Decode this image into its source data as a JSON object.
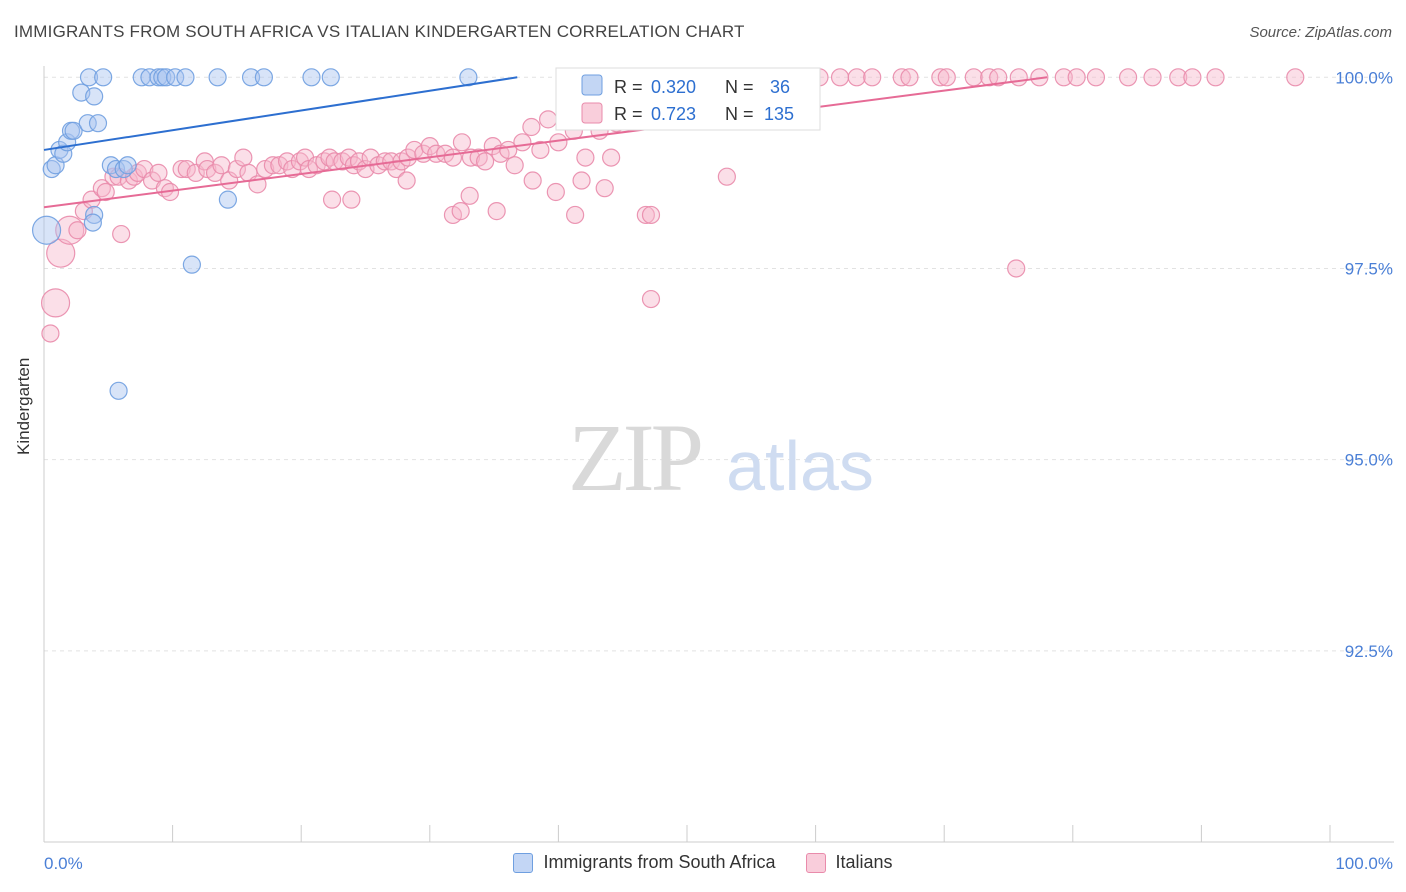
{
  "title": "IMMIGRANTS FROM SOUTH AFRICA VS ITALIAN KINDERGARTEN CORRELATION CHART",
  "source": "Source: ZipAtlas.com",
  "watermark": {
    "zip": "ZIP",
    "atlas": "atlas"
  },
  "colors": {
    "blue_fill": "#a9c4f0",
    "blue_stroke": "#6f9fe0",
    "blue_line": "#2d6fd0",
    "pink_fill": "#f6b9cc",
    "pink_stroke": "#e98bab",
    "pink_line": "#e66b96",
    "tick_label": "#4a7fd6"
  },
  "legend_top": [
    {
      "r_label": "R =",
      "r_value": "0.320",
      "n_label": "N =",
      "n_value": "36"
    },
    {
      "r_label": "R =",
      "r_value": "0.723",
      "n_label": "N =",
      "n_value": "135"
    }
  ],
  "legend_bottom": [
    "Immigrants from South Africa",
    "Italians"
  ],
  "chart_data": {
    "type": "scatter",
    "title": "IMMIGRANTS FROM SOUTH AFRICA VS ITALIAN KINDERGARTEN CORRELATION CHART",
    "xlabel": "",
    "ylabel": "Kindergarten",
    "xlim": [
      0,
      100
    ],
    "ylim": [
      90.0,
      100.2
    ],
    "x_tick_labels": [
      "0.0%",
      "100.0%"
    ],
    "y_ticks": [
      92.5,
      95.0,
      97.5,
      100.0
    ],
    "y_tick_labels": [
      "92.5%",
      "95.0%",
      "97.5%",
      "100.0%"
    ],
    "series": [
      {
        "name": "Immigrants from South Africa",
        "R": 0.32,
        "N": 36,
        "trend": {
          "x": [
            0,
            36.8
          ],
          "y": [
            99.05,
            100.0
          ]
        },
        "points": [
          [
            0.2,
            98.0,
            1
          ],
          [
            0.6,
            98.8,
            0
          ],
          [
            0.9,
            98.85,
            0
          ],
          [
            1.2,
            99.05,
            0
          ],
          [
            1.5,
            99.0,
            0
          ],
          [
            1.8,
            99.15,
            0
          ],
          [
            2.1,
            99.3,
            0
          ],
          [
            2.3,
            99.3,
            0
          ],
          [
            2.9,
            99.8,
            0
          ],
          [
            3.4,
            99.4,
            0
          ],
          [
            3.5,
            100.0,
            0
          ],
          [
            3.9,
            99.75,
            0
          ],
          [
            4.2,
            99.4,
            0
          ],
          [
            3.9,
            98.2,
            0
          ],
          [
            3.8,
            98.1,
            0
          ],
          [
            4.6,
            100.0,
            0
          ],
          [
            5.2,
            98.85,
            0
          ],
          [
            5.6,
            98.8,
            0
          ],
          [
            6.2,
            98.8,
            0
          ],
          [
            6.5,
            98.85,
            0
          ],
          [
            7.6,
            100.0,
            0
          ],
          [
            8.2,
            100.0,
            0
          ],
          [
            8.9,
            100.0,
            0
          ],
          [
            9.2,
            100.0,
            0
          ],
          [
            9.5,
            100.0,
            0
          ],
          [
            10.2,
            100.0,
            0
          ],
          [
            11.0,
            100.0,
            0
          ],
          [
            13.5,
            100.0,
            0
          ],
          [
            14.3,
            98.4,
            0
          ],
          [
            16.1,
            100.0,
            0
          ],
          [
            17.1,
            100.0,
            0
          ],
          [
            20.8,
            100.0,
            0
          ],
          [
            22.3,
            100.0,
            0
          ],
          [
            33.0,
            100.0,
            0
          ],
          [
            11.5,
            97.55,
            0
          ],
          [
            5.8,
            95.9,
            0
          ]
        ]
      },
      {
        "name": "Italians",
        "R": 0.723,
        "N": 135,
        "trend": {
          "x": [
            0,
            78.0
          ],
          "y": [
            98.3,
            100.0
          ]
        },
        "points": [
          [
            0.5,
            96.65,
            0
          ],
          [
            0.9,
            97.05,
            1
          ],
          [
            1.3,
            97.7,
            1
          ],
          [
            2.0,
            98.0,
            1
          ],
          [
            2.6,
            98.0,
            0
          ],
          [
            3.1,
            98.25,
            0
          ],
          [
            3.7,
            98.4,
            0
          ],
          [
            4.5,
            98.55,
            0
          ],
          [
            4.8,
            98.5,
            0
          ],
          [
            5.4,
            98.7,
            0
          ],
          [
            5.8,
            98.7,
            0
          ],
          [
            6.0,
            97.95,
            0
          ],
          [
            6.6,
            98.65,
            0
          ],
          [
            7.0,
            98.7,
            0
          ],
          [
            7.3,
            98.75,
            0
          ],
          [
            7.8,
            98.8,
            0
          ],
          [
            8.4,
            98.65,
            0
          ],
          [
            8.9,
            98.75,
            0
          ],
          [
            9.4,
            98.55,
            0
          ],
          [
            9.8,
            98.5,
            0
          ],
          [
            10.7,
            98.8,
            0
          ],
          [
            11.1,
            98.8,
            0
          ],
          [
            11.8,
            98.75,
            0
          ],
          [
            12.5,
            98.9,
            0
          ],
          [
            12.7,
            98.8,
            0
          ],
          [
            13.3,
            98.75,
            0
          ],
          [
            13.8,
            98.85,
            0
          ],
          [
            14.4,
            98.65,
            0
          ],
          [
            15.0,
            98.8,
            0
          ],
          [
            15.5,
            98.95,
            0
          ],
          [
            15.9,
            98.75,
            0
          ],
          [
            16.6,
            98.6,
            0
          ],
          [
            17.2,
            98.8,
            0
          ],
          [
            17.8,
            98.85,
            0
          ],
          [
            18.3,
            98.85,
            0
          ],
          [
            18.9,
            98.9,
            0
          ],
          [
            19.3,
            98.8,
            0
          ],
          [
            19.9,
            98.9,
            0
          ],
          [
            20.3,
            98.95,
            0
          ],
          [
            20.6,
            98.8,
            0
          ],
          [
            21.2,
            98.85,
            0
          ],
          [
            21.8,
            98.9,
            0
          ],
          [
            22.2,
            98.95,
            0
          ],
          [
            22.6,
            98.9,
            0
          ],
          [
            23.2,
            98.9,
            0
          ],
          [
            23.7,
            98.95,
            0
          ],
          [
            24.1,
            98.85,
            0
          ],
          [
            24.5,
            98.9,
            0
          ],
          [
            25.0,
            98.8,
            0
          ],
          [
            25.4,
            98.95,
            0
          ],
          [
            26.0,
            98.85,
            0
          ],
          [
            26.5,
            98.9,
            0
          ],
          [
            27.0,
            98.9,
            0
          ],
          [
            27.4,
            98.8,
            0
          ],
          [
            27.8,
            98.9,
            0
          ],
          [
            28.3,
            98.95,
            0
          ],
          [
            28.8,
            99.05,
            0
          ],
          [
            29.5,
            99.0,
            0
          ],
          [
            30.0,
            99.1,
            0
          ],
          [
            30.5,
            99.0,
            0
          ],
          [
            31.2,
            99.0,
            0
          ],
          [
            31.8,
            98.95,
            0
          ],
          [
            32.5,
            99.15,
            0
          ],
          [
            33.2,
            98.95,
            0
          ],
          [
            33.8,
            98.95,
            0
          ],
          [
            34.3,
            98.9,
            0
          ],
          [
            34.9,
            99.1,
            0
          ],
          [
            35.5,
            99.0,
            0
          ],
          [
            36.1,
            99.05,
            0
          ],
          [
            36.6,
            98.85,
            0
          ],
          [
            37.2,
            99.15,
            0
          ],
          [
            37.9,
            99.35,
            0
          ],
          [
            38.6,
            99.05,
            0
          ],
          [
            39.2,
            99.45,
            0
          ],
          [
            40.0,
            99.15,
            0
          ],
          [
            41.2,
            99.3,
            0
          ],
          [
            42.1,
            98.95,
            0
          ],
          [
            43.2,
            99.3,
            0
          ],
          [
            44.5,
            99.4,
            0
          ],
          [
            46.1,
            99.55,
            0
          ],
          [
            48.5,
            99.45,
            0
          ],
          [
            51.6,
            99.65,
            0
          ],
          [
            38.0,
            98.65,
            0
          ],
          [
            39.8,
            98.5,
            0
          ],
          [
            41.8,
            98.65,
            0
          ],
          [
            43.6,
            98.55,
            0
          ],
          [
            35.2,
            98.25,
            0
          ],
          [
            41.3,
            98.2,
            0
          ],
          [
            46.8,
            98.2,
            0
          ],
          [
            53.1,
            98.7,
            0
          ],
          [
            31.8,
            98.2,
            0
          ],
          [
            32.4,
            98.25,
            0
          ],
          [
            33.1,
            98.45,
            0
          ],
          [
            28.2,
            98.65,
            0
          ],
          [
            23.9,
            98.4,
            0
          ],
          [
            22.4,
            98.4,
            0
          ],
          [
            44.1,
            98.95,
            0
          ],
          [
            46.8,
            100.0,
            0
          ],
          [
            49.3,
            100.0,
            0
          ],
          [
            51.0,
            100.0,
            0
          ],
          [
            53.8,
            100.0,
            0
          ],
          [
            56.2,
            100.0,
            0
          ],
          [
            58.7,
            100.0,
            0
          ],
          [
            61.9,
            100.0,
            0
          ],
          [
            63.2,
            100.0,
            0
          ],
          [
            64.4,
            100.0,
            0
          ],
          [
            66.7,
            100.0,
            0
          ],
          [
            67.3,
            100.0,
            0
          ],
          [
            69.7,
            100.0,
            0
          ],
          [
            70.2,
            100.0,
            0
          ],
          [
            72.3,
            100.0,
            0
          ],
          [
            73.5,
            100.0,
            0
          ],
          [
            74.2,
            100.0,
            0
          ],
          [
            75.8,
            100.0,
            0
          ],
          [
            77.4,
            100.0,
            0
          ],
          [
            79.3,
            100.0,
            0
          ],
          [
            80.3,
            100.0,
            0
          ],
          [
            81.8,
            100.0,
            0
          ],
          [
            84.3,
            100.0,
            0
          ],
          [
            86.2,
            100.0,
            0
          ],
          [
            88.2,
            100.0,
            0
          ],
          [
            89.3,
            100.0,
            0
          ],
          [
            91.1,
            100.0,
            0
          ],
          [
            97.3,
            100.0,
            0
          ],
          [
            47.2,
            98.2,
            0
          ],
          [
            75.6,
            97.5,
            0
          ],
          [
            47.2,
            97.1,
            0
          ],
          [
            54.0,
            100.0,
            0
          ],
          [
            55.5,
            100.0,
            0
          ],
          [
            57.7,
            100.0,
            0
          ],
          [
            60.3,
            100.0,
            0
          ],
          [
            44.0,
            100.0,
            0
          ],
          [
            52.0,
            100.0,
            0
          ],
          [
            49.7,
            100.0,
            0
          ],
          [
            59.5,
            100.0,
            0
          ]
        ]
      }
    ]
  }
}
